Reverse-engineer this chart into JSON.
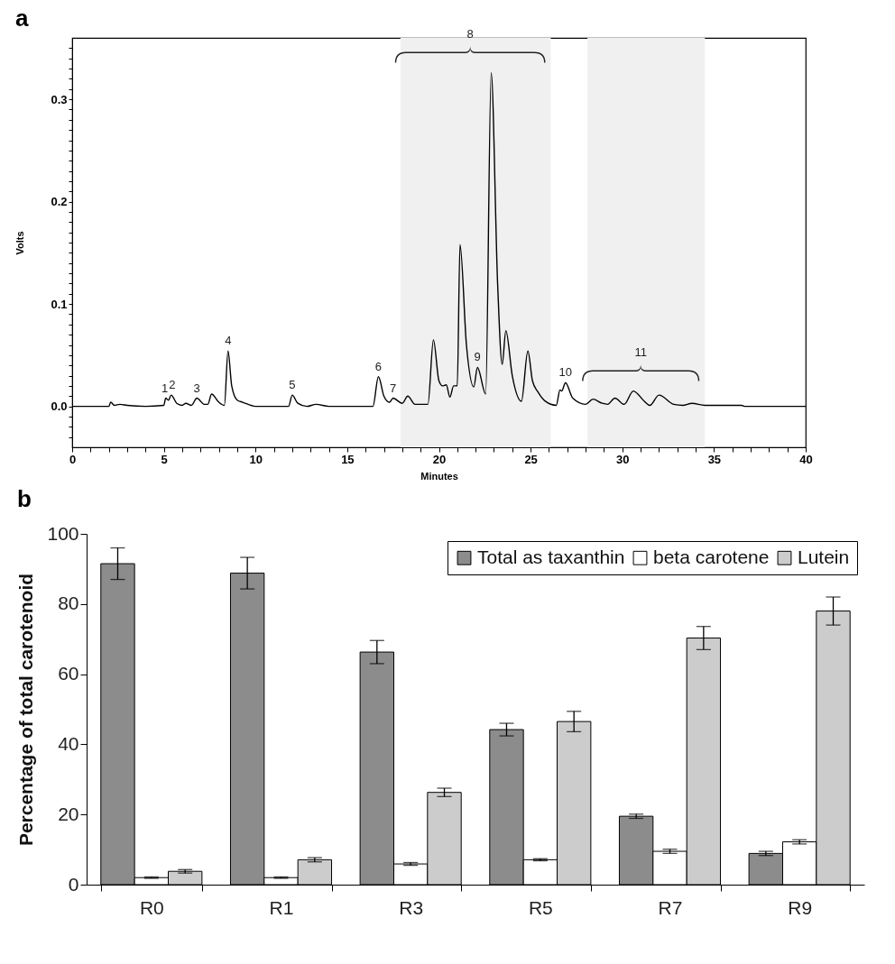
{
  "chart_data": [
    {
      "type": "line",
      "title": "a",
      "xlabel": "Minutes",
      "ylabel": "Volts",
      "xlim": [
        0,
        40
      ],
      "ylim": [
        -0.04,
        0.36
      ],
      "marker": "none",
      "line_style": "solid",
      "legend": false,
      "grid": false,
      "xticks": [
        0,
        {
          "value": 1,
          "label": null
        },
        {
          "value": 2,
          "label": null
        },
        {
          "value": 3,
          "label": null
        },
        {
          "value": 4,
          "label": null
        },
        5,
        {
          "value": 6,
          "label": null
        },
        {
          "value": 7,
          "label": null
        },
        {
          "value": 8,
          "label": null
        },
        {
          "value": 9,
          "label": null
        },
        10,
        {
          "value": 11,
          "label": null
        },
        {
          "value": 12,
          "label": null
        },
        {
          "value": 13,
          "label": null
        },
        {
          "value": 14,
          "label": null
        },
        15,
        {
          "value": 16,
          "label": null
        },
        {
          "value": 17,
          "label": null
        },
        {
          "value": 18,
          "label": null
        },
        {
          "value": 19,
          "label": null
        },
        20,
        {
          "value": 21,
          "label": null
        },
        {
          "value": 22,
          "label": null
        },
        {
          "value": 23,
          "label": null
        },
        {
          "value": 24,
          "label": null
        },
        25,
        {
          "value": 26,
          "label": null
        },
        {
          "value": 27,
          "label": null
        },
        {
          "value": 28,
          "label": null
        },
        {
          "value": 29,
          "label": null
        },
        30,
        {
          "value": 31,
          "label": null
        },
        {
          "value": 32,
          "label": null
        },
        {
          "value": 33,
          "label": null
        },
        {
          "value": 34,
          "label": null
        },
        35,
        {
          "value": 36,
          "label": null
        },
        {
          "value": 37,
          "label": null
        },
        {
          "value": 38,
          "label": null
        },
        {
          "value": 39,
          "label": null
        },
        40
      ],
      "yticks": [
        {
          "value": -0.03,
          "label": null
        },
        {
          "value": -0.02,
          "label": null
        },
        {
          "value": -0.01,
          "label": null
        },
        {
          "value": 0,
          "label": "0.0"
        },
        {
          "value": 0.01,
          "label": null
        },
        {
          "value": 0.02,
          "label": null
        },
        {
          "value": 0.03,
          "label": null
        },
        {
          "value": 0.04,
          "label": null
        },
        {
          "value": 0.05,
          "label": null
        },
        {
          "value": 0.06,
          "label": null
        },
        {
          "value": 0.07,
          "label": null
        },
        {
          "value": 0.08,
          "label": null
        },
        {
          "value": 0.09,
          "label": null
        },
        0.1,
        {
          "value": 0.11,
          "label": null
        },
        {
          "value": 0.12,
          "label": null
        },
        {
          "value": 0.13,
          "label": null
        },
        {
          "value": 0.14,
          "label": null
        },
        {
          "value": 0.15,
          "label": null
        },
        {
          "value": 0.16,
          "label": null
        },
        {
          "value": 0.17,
          "label": null
        },
        {
          "value": 0.18,
          "label": null
        },
        {
          "value": 0.19,
          "label": null
        },
        0.2,
        {
          "value": 0.21,
          "label": null
        },
        {
          "value": 0.22,
          "label": null
        },
        {
          "value": 0.23,
          "label": null
        },
        {
          "value": 0.24,
          "label": null
        },
        {
          "value": 0.25,
          "label": null
        },
        {
          "value": 0.26,
          "label": null
        },
        {
          "value": 0.27,
          "label": null
        },
        {
          "value": 0.28,
          "label": null
        },
        {
          "value": 0.29,
          "label": null
        },
        0.3,
        {
          "value": 0.31,
          "label": null
        },
        {
          "value": 0.32,
          "label": null
        },
        {
          "value": 0.33,
          "label": null
        },
        {
          "value": 0.34,
          "label": null
        },
        {
          "value": 0.35,
          "label": null
        }
      ],
      "series": [
        {
          "color": "#000000",
          "x": [
            0,
            2.0,
            2.1,
            2.3,
            2.6,
            3,
            4,
            5.0,
            5.1,
            5.25,
            5.4,
            5.7,
            6.0,
            6.2,
            6.5,
            6.8,
            7.2,
            7.4,
            7.6,
            8.0,
            8.3,
            8.5,
            8.7,
            9.0,
            9.3,
            10,
            11.8,
            12.0,
            12.3,
            12.8,
            13.3,
            14,
            16.4,
            16.7,
            17.0,
            17.3,
            17.5,
            18.0,
            18.3,
            18.7,
            19.4,
            19.7,
            20.0,
            20.2,
            20.4,
            20.6,
            20.8,
            21.0,
            21.15,
            21.5,
            21.9,
            22.1,
            22.55,
            22.85,
            23.2,
            23.45,
            23.65,
            24.0,
            24.5,
            24.85,
            25.1,
            25.4,
            25.8,
            26.4,
            26.6,
            26.7,
            26.9,
            27.3,
            28.0,
            28.4,
            28.9,
            29.2,
            29.6,
            30.1,
            30.6,
            31.2,
            31.5,
            32.0,
            32.8,
            33.3,
            33.8,
            34.5,
            36.5,
            36.7,
            40
          ],
          "values": [
            0,
            0,
            0.004,
            0.001,
            0.002,
            0.001,
            0,
            0.001,
            0.008,
            0.006,
            0.011,
            0.003,
            0.001,
            0.003,
            0.001,
            0.008,
            0.002,
            0.002,
            0.012,
            0.004,
            0.001,
            0.054,
            0.02,
            0.006,
            0.004,
            0,
            0,
            0.011,
            0.003,
            0,
            0.002,
            0,
            0,
            0.029,
            0.01,
            0.004,
            0.008,
            0.003,
            0.01,
            0.002,
            0.002,
            0.065,
            0.025,
            0.02,
            0.021,
            0.009,
            0.02,
            0.02,
            0.158,
            0.06,
            0.019,
            0.038,
            0.012,
            0.326,
            0.12,
            0.041,
            0.074,
            0.03,
            0.005,
            0.054,
            0.025,
            0.014,
            0.005,
            0.001,
            0.016,
            0.015,
            0.023,
            0.008,
            0.002,
            0.007,
            0.003,
            0.002,
            0.008,
            0.002,
            0.015,
            0.005,
            0.001,
            0.011,
            0.002,
            0.001,
            0.003,
            0.001,
            0.001,
            0,
            0
          ]
        }
      ],
      "annotations": [
        {
          "text": "1",
          "x": 5.05,
          "y": 0.008
        },
        {
          "text": "2",
          "x": 5.45,
          "y": 0.011
        },
        {
          "text": "3",
          "x": 6.8,
          "y": 0.008
        },
        {
          "text": "4",
          "x": 8.5,
          "y": 0.054
        },
        {
          "text": "5",
          "x": 12.0,
          "y": 0.011
        },
        {
          "text": "6",
          "x": 16.7,
          "y": 0.029
        },
        {
          "text": "7",
          "x": 17.5,
          "y": 0.008
        },
        {
          "text": "9",
          "x": 22.1,
          "y": 0.038
        },
        {
          "text": "10",
          "x": 26.9,
          "y": 0.023
        }
      ],
      "bands": [
        {
          "axis": "x",
          "from": 17.9,
          "to": 26.1,
          "label": "8"
        },
        {
          "axis": "x",
          "from": 28.1,
          "to": 34.5,
          "label": "11"
        }
      ]
    },
    {
      "type": "bar",
      "title": "b",
      "ylabel": "Percentage of total carotenoid",
      "categories": [
        "R0",
        "R1",
        "R3",
        "R5",
        "R7",
        "R9"
      ],
      "ylim": [
        0,
        100
      ],
      "yticks": [
        0,
        20,
        40,
        60,
        80,
        100
      ],
      "legend": "top right",
      "grid": false,
      "series": [
        {
          "name": "Total as taxanthin",
          "color": "#8c8c8c",
          "values": [
            91.5,
            88.8,
            66.3,
            44.2,
            19.5,
            8.9
          ],
          "errors": [
            4.5,
            4.5,
            3.3,
            1.8,
            0.6,
            0.6
          ]
        },
        {
          "name": "beta carotene",
          "color": "#ffffff",
          "values": [
            2.0,
            2.0,
            5.9,
            7.1,
            9.5,
            12.2
          ],
          "errors": [
            0.2,
            0.2,
            0.4,
            0.3,
            0.6,
            0.6
          ]
        },
        {
          "name": "Lutein",
          "color": "#cccccc",
          "values": [
            3.8,
            7.1,
            26.3,
            46.5,
            70.3,
            78.0
          ],
          "errors": [
            0.5,
            0.6,
            1.2,
            2.9,
            3.3,
            4.0
          ]
        }
      ]
    }
  ]
}
